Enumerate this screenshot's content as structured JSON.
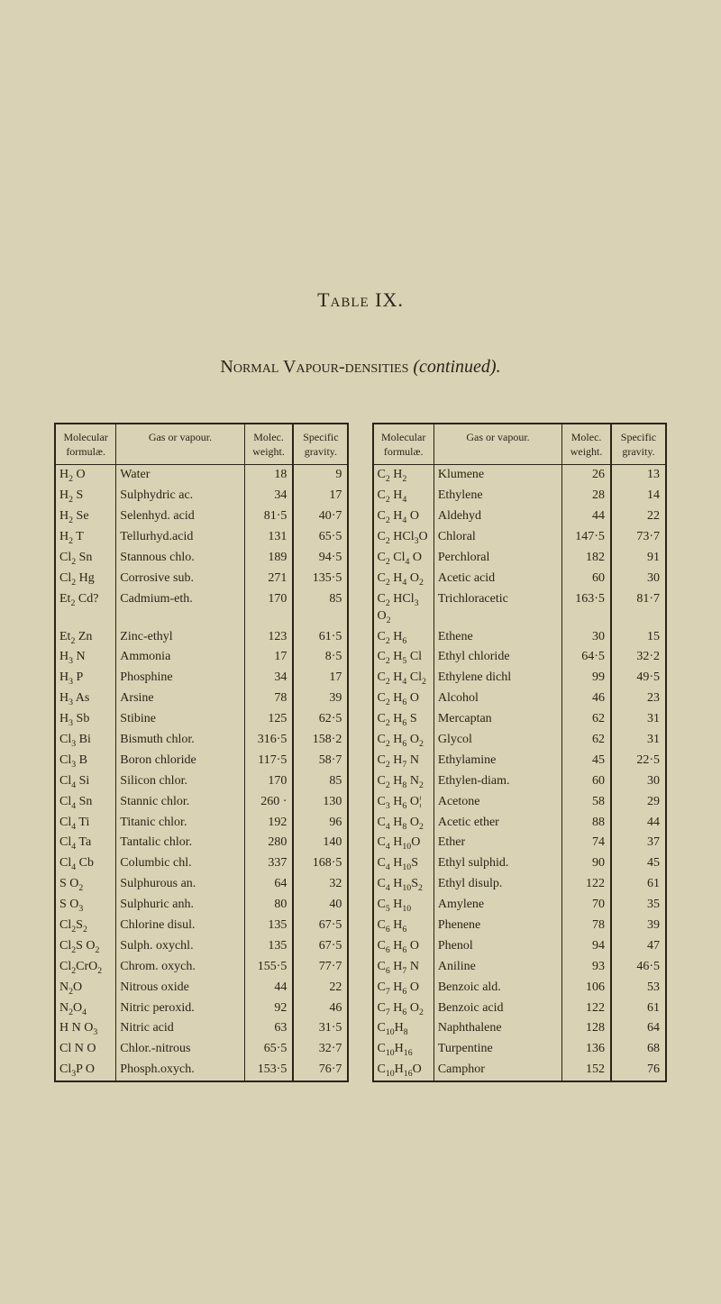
{
  "title_main": "Table IX.",
  "title_sub_caps": "Normal Vapour-densities",
  "title_sub_ital": "(continued).",
  "headers": {
    "mf": "Molecular formulæ.",
    "gas": "Gas or vapour.",
    "mw": "Molec. weight.",
    "sg": "Specific gravity."
  },
  "rows_left": [
    {
      "mf": "H<sub>2</sub> O",
      "gas": "Water",
      "mw": "18",
      "sg": "9"
    },
    {
      "mf": "H<sub>2</sub> S",
      "gas": "Sulphydric ac.",
      "mw": "34",
      "sg": "17"
    },
    {
      "mf": "H<sub>2</sub> Se",
      "gas": "Selenhyd. acid",
      "mw": "81·5",
      "sg": "40·7"
    },
    {
      "mf": "H<sub>2</sub> T",
      "gas": "Tellurhyd.acid",
      "mw": "131",
      "sg": "65·5"
    },
    {
      "mf": "Cl<sub>2</sub> Sn",
      "gas": "Stannous chlo.",
      "mw": "189",
      "sg": "94·5"
    },
    {
      "mf": "Cl<sub>2</sub> Hg",
      "gas": "Corrosive sub.",
      "mw": "271",
      "sg": "135·5"
    },
    {
      "mf": "Et<sub>2</sub> Cd?",
      "gas": "Cadmium-eth.",
      "mw": "170",
      "sg": "85"
    },
    {
      "mf": "Et<sub>2</sub> Zn",
      "gas": "Zinc-ethyl",
      "mw": "123",
      "sg": "61·5"
    },
    {
      "mf": "H<sub>3</sub> N",
      "gas": "Ammonia",
      "mw": "17",
      "sg": "8·5"
    },
    {
      "mf": "H<sub>3</sub> P",
      "gas": "Phosphine",
      "mw": "34",
      "sg": "17"
    },
    {
      "mf": "H<sub>3</sub> As",
      "gas": "Arsine",
      "mw": "78",
      "sg": "39"
    },
    {
      "mf": "H<sub>3</sub> Sb",
      "gas": "Stibine",
      "mw": "125",
      "sg": "62·5"
    },
    {
      "mf": "Cl<sub>3</sub> Bi",
      "gas": "Bismuth chlor.",
      "mw": "316·5",
      "sg": "158·2"
    },
    {
      "mf": "Cl<sub>3</sub> B",
      "gas": "Boron chloride",
      "mw": "117·5",
      "sg": "58·7"
    },
    {
      "mf": "Cl<sub>4</sub> Si",
      "gas": "Silicon chlor.",
      "mw": "170",
      "sg": "85"
    },
    {
      "mf": "Cl<sub>4</sub> Sn",
      "gas": "Stannic chlor.",
      "mw": "260 ·",
      "sg": "130"
    },
    {
      "mf": "Cl<sub>4</sub> Ti",
      "gas": "Titanic chlor.",
      "mw": "192",
      "sg": "96"
    },
    {
      "mf": "Cl<sub>4</sub> Ta",
      "gas": "Tantalic chlor.",
      "mw": "280",
      "sg": "140"
    },
    {
      "mf": "Cl<sub>4</sub> Cb",
      "gas": "Columbic chl.",
      "mw": "337",
      "sg": "168·5"
    },
    {
      "mf": "S O<sub>2</sub>",
      "gas": "Sulphurous an.",
      "mw": "64",
      "sg": "32"
    },
    {
      "mf": "S O<sub>3</sub>",
      "gas": "Sulphuric anh.",
      "mw": "80",
      "sg": "40"
    },
    {
      "mf": "Cl<sub>2</sub>S<sub>2</sub>",
      "gas": "Chlorine disul.",
      "mw": "135",
      "sg": "67·5"
    },
    {
      "mf": "Cl<sub>2</sub>S O<sub>2</sub>",
      "gas": "Sulph. oxychl.",
      "mw": "135",
      "sg": "67·5"
    },
    {
      "mf": "Cl<sub>2</sub>CrO<sub>2</sub>",
      "gas": "Chrom. oxych.",
      "mw": "155·5",
      "sg": "77·7"
    },
    {
      "mf": "N<sub>2</sub>O",
      "gas": "Nitrous oxide",
      "mw": "44",
      "sg": "22"
    },
    {
      "mf": "N<sub>2</sub>O<sub>4</sub>",
      "gas": "Nitric peroxid.",
      "mw": "92",
      "sg": "46"
    },
    {
      "mf": "H N O<sub>3</sub>",
      "gas": "Nitric acid",
      "mw": "63",
      "sg": "31·5"
    },
    {
      "mf": "Cl N O",
      "gas": "Chlor.-nitrous",
      "mw": "65·5",
      "sg": "32·7"
    },
    {
      "mf": "Cl<sub>3</sub>P O",
      "gas": "Phosph.oxych.",
      "mw": "153·5",
      "sg": "76·7"
    }
  ],
  "rows_right": [
    {
      "mf": "C<sub>2</sub> H<sub>2</sub>",
      "gas": "Klumene",
      "mw": "26",
      "sg": "13"
    },
    {
      "mf": "C<sub>2</sub> H<sub>4</sub>",
      "gas": "Ethylene",
      "mw": "28",
      "sg": "14"
    },
    {
      "mf": "C<sub>2</sub> H<sub>4</sub> O",
      "gas": "Aldehyd",
      "mw": "44",
      "sg": "22"
    },
    {
      "mf": "C<sub>2</sub> HCl<sub>3</sub>O",
      "gas": "Chloral",
      "mw": "147·5",
      "sg": "73·7"
    },
    {
      "mf": "C<sub>2</sub> Cl<sub>4</sub> O",
      "gas": "Perchloral",
      "mw": "182",
      "sg": "91"
    },
    {
      "mf": "C<sub>2</sub> H<sub>4</sub> O<sub>2</sub>",
      "gas": "Acetic acid",
      "mw": "60",
      "sg": "30"
    },
    {
      "mf": "C<sub>2</sub> HCl<sub>3</sub> O<sub>2</sub>",
      "gas": "Trichloracetic",
      "mw": "163·5",
      "sg": "81·7"
    },
    {
      "mf": "C<sub>2</sub> H<sub>6</sub>",
      "gas": "Ethene",
      "mw": "30",
      "sg": "15"
    },
    {
      "mf": "C<sub>2</sub> H<sub>5</sub> Cl",
      "gas": "Ethyl chloride",
      "mw": "64·5",
      "sg": "32·2"
    },
    {
      "mf": "C<sub>2</sub> H<sub>4</sub> Cl<sub>2</sub>",
      "gas": "Ethylene dichl",
      "mw": "99",
      "sg": "49·5"
    },
    {
      "mf": "C<sub>2</sub> H<sub>6</sub> O",
      "gas": "Alcohol",
      "mw": "46",
      "sg": "23"
    },
    {
      "mf": "C<sub>2</sub> H<sub>6</sub> S",
      "gas": "Mercaptan",
      "mw": "62",
      "sg": "31"
    },
    {
      "mf": "C<sub>2</sub> H<sub>6</sub> O<sub>2</sub>",
      "gas": "Glycol",
      "mw": "62",
      "sg": "31"
    },
    {
      "mf": "C<sub>2</sub> H<sub>7</sub> N",
      "gas": "Ethylamine",
      "mw": "45",
      "sg": "22·5"
    },
    {
      "mf": "C<sub>2</sub> H<sub>8</sub> N<sub>2</sub>",
      "gas": "Ethylen-diam.",
      "mw": "60",
      "sg": "30"
    },
    {
      "mf": "C<sub>3</sub> H<sub>6</sub> O¦",
      "gas": "Acetone",
      "mw": "58",
      "sg": "29"
    },
    {
      "mf": "C<sub>4</sub> H<sub>8</sub> O<sub>2</sub>",
      "gas": "Acetic ether",
      "mw": "88",
      "sg": "44"
    },
    {
      "mf": "C<sub>4</sub> H<sub>10</sub>O",
      "gas": "Ether",
      "mw": "74",
      "sg": "37"
    },
    {
      "mf": "C<sub>4</sub> H<sub>10</sub>S",
      "gas": "Ethyl sulphid.",
      "mw": "90",
      "sg": "45"
    },
    {
      "mf": "C<sub>4</sub> H<sub>10</sub>S<sub>2</sub>",
      "gas": "Ethyl disulp.",
      "mw": "122",
      "sg": "61"
    },
    {
      "mf": "C<sub>5</sub> H<sub>10</sub>",
      "gas": "Amylene",
      "mw": "70",
      "sg": "35"
    },
    {
      "mf": "C<sub>6</sub> H<sub>6</sub>",
      "gas": "Phenene",
      "mw": "78",
      "sg": "39"
    },
    {
      "mf": "C<sub>6</sub> H<sub>6</sub> O",
      "gas": "Phenol",
      "mw": "94",
      "sg": "47"
    },
    {
      "mf": "C<sub>6</sub> H<sub>7</sub> N",
      "gas": "Aniline",
      "mw": "93",
      "sg": "46·5"
    },
    {
      "mf": "C<sub>7</sub> H<sub>6</sub> O",
      "gas": "Benzoic ald.",
      "mw": "106",
      "sg": "53"
    },
    {
      "mf": "C<sub>7</sub> H<sub>6</sub> O<sub>2</sub>",
      "gas": "Benzoic acid",
      "mw": "122",
      "sg": "61"
    },
    {
      "mf": "C<sub>10</sub>H<sub>8</sub>",
      "gas": "Naphthalene",
      "mw": "128",
      "sg": "64"
    },
    {
      "mf": "C<sub>10</sub>H<sub>16</sub>",
      "gas": "Turpentine",
      "mw": "136",
      "sg": "68"
    },
    {
      "mf": "C<sub>10</sub>H<sub>16</sub>O",
      "gas": "Camphor",
      "mw": "152",
      "sg": "76"
    }
  ]
}
